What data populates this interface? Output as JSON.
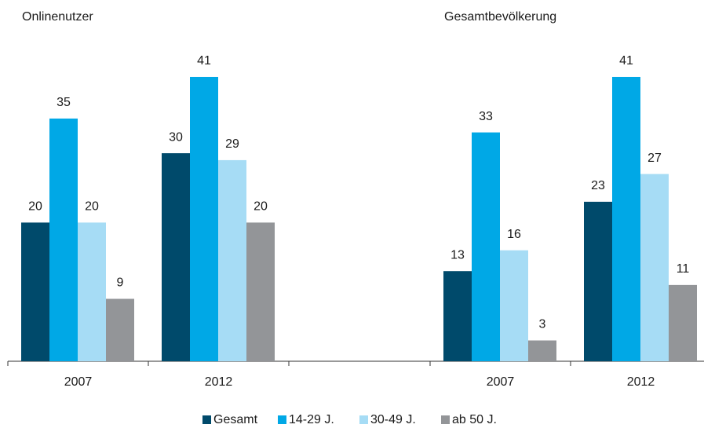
{
  "chart_data": {
    "type": "bar",
    "panel_titles": [
      "Onlinenutzer",
      "Gesamtbevölkerung"
    ],
    "categories": [
      "2007",
      "2012",
      "2007",
      "2012"
    ],
    "series": [
      {
        "name": "Gesamt",
        "color": "#004a6b",
        "values": [
          20,
          30,
          13,
          23
        ]
      },
      {
        "name": "14-29 J.",
        "color": "#00a8e6",
        "values": [
          35,
          41,
          33,
          41
        ]
      },
      {
        "name": "30-49 J.",
        "color": "#a6dcf5",
        "values": [
          20,
          29,
          16,
          27
        ]
      },
      {
        "name": "ab 50 J.",
        "color": "#939598",
        "values": [
          9,
          20,
          3,
          11
        ]
      }
    ]
  }
}
